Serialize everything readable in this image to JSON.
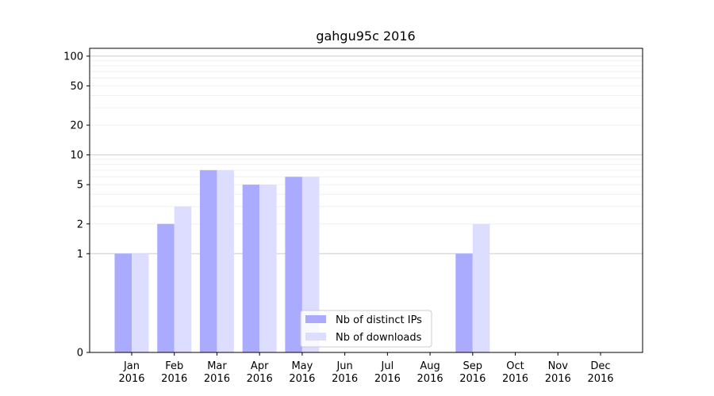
{
  "chart_data": {
    "type": "bar",
    "title": "gahgu95c 2016",
    "xlabel": "",
    "ylabel": "",
    "y_scale": "symlog",
    "ylim": [
      0,
      120
    ],
    "yticks": [
      0,
      1,
      2,
      5,
      10,
      20,
      50,
      100
    ],
    "ytick_labels": [
      "0",
      "1",
      "2",
      "5",
      "10",
      "20",
      "50",
      "100"
    ],
    "grid": true,
    "legend_position": "bottom-center",
    "categories": [
      [
        "Jan",
        "2016"
      ],
      [
        "Feb",
        "2016"
      ],
      [
        "Mar",
        "2016"
      ],
      [
        "Apr",
        "2016"
      ],
      [
        "May",
        "2016"
      ],
      [
        "Jun",
        "2016"
      ],
      [
        "Jul",
        "2016"
      ],
      [
        "Aug",
        "2016"
      ],
      [
        "Sep",
        "2016"
      ],
      [
        "Oct",
        "2016"
      ],
      [
        "Nov",
        "2016"
      ],
      [
        "Dec",
        "2016"
      ]
    ],
    "series": [
      {
        "name": "Nb of distinct IPs",
        "color": "#aaaaff",
        "values": [
          1,
          2,
          7,
          5,
          6,
          0,
          0,
          0,
          1,
          0,
          0,
          0
        ]
      },
      {
        "name": "Nb of downloads",
        "color": "#ddddff",
        "values": [
          1,
          3,
          7,
          5,
          6,
          0,
          0,
          0,
          2,
          0,
          0,
          0
        ]
      }
    ]
  }
}
